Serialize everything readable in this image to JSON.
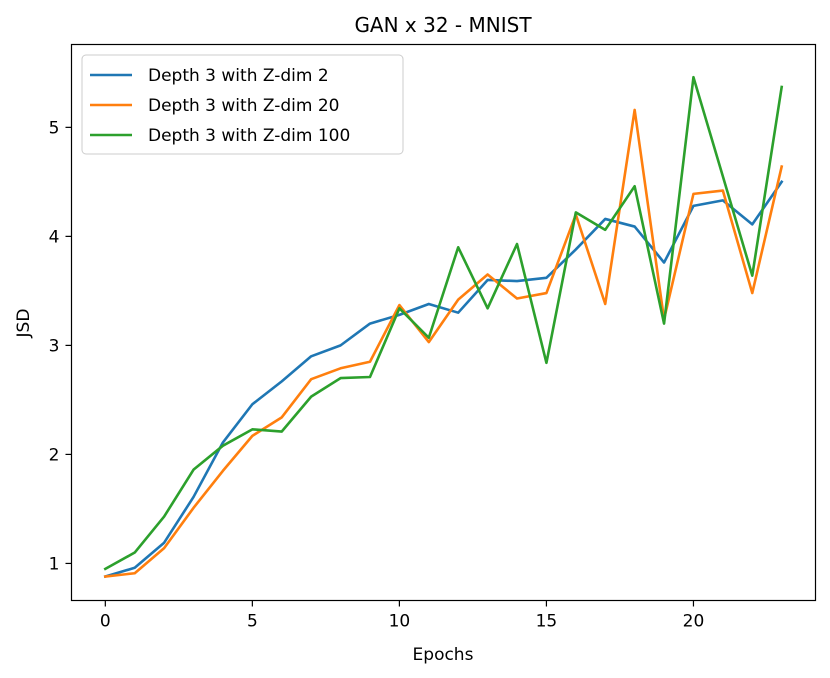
{
  "chart_data": {
    "type": "line",
    "title": "GAN x 32 - MNIST",
    "xlabel": "Epochs",
    "ylabel": "JSD",
    "xlim": [
      -1.15,
      24.15
    ],
    "ylim": [
      0.66,
      5.76
    ],
    "xticks": [
      0,
      5,
      10,
      15,
      20
    ],
    "yticks": [
      1,
      2,
      3,
      4,
      5
    ],
    "grid": false,
    "legend_position": "top-left",
    "x": [
      0,
      1,
      2,
      3,
      4,
      5,
      6,
      7,
      8,
      9,
      10,
      11,
      12,
      13,
      14,
      15,
      16,
      17,
      18,
      19,
      20,
      21,
      22,
      23
    ],
    "series": [
      {
        "name": "Depth 3 with Z-dim 2",
        "color": "#1f77b4",
        "values": [
          0.88,
          0.96,
          1.19,
          1.61,
          2.11,
          2.46,
          2.67,
          2.9,
          3.0,
          3.2,
          3.28,
          3.38,
          3.3,
          3.6,
          3.59,
          3.62,
          3.88,
          4.16,
          4.09,
          3.76,
          4.28,
          4.33,
          4.11,
          4.5
        ]
      },
      {
        "name": "Depth 3 with Z-dim 20",
        "color": "#ff7f0e",
        "values": [
          0.88,
          0.91,
          1.14,
          1.51,
          1.85,
          2.17,
          2.34,
          2.69,
          2.79,
          2.85,
          3.37,
          3.03,
          3.42,
          3.65,
          3.43,
          3.48,
          4.2,
          3.38,
          5.16,
          3.24,
          4.39,
          4.42,
          3.48,
          4.64
        ]
      },
      {
        "name": "Depth 3 with Z-dim 100",
        "color": "#2ca02c",
        "values": [
          0.95,
          1.1,
          1.43,
          1.86,
          2.08,
          2.23,
          2.21,
          2.53,
          2.7,
          2.71,
          3.34,
          3.07,
          3.9,
          3.34,
          3.93,
          2.84,
          4.22,
          4.06,
          4.46,
          3.2,
          5.46,
          4.55,
          3.64,
          5.37
        ]
      }
    ]
  }
}
